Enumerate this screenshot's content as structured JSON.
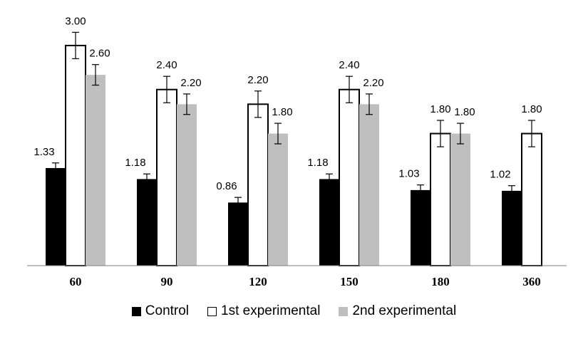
{
  "chart_data": {
    "type": "bar",
    "categories": [
      "60",
      "90",
      "120",
      "150",
      "180",
      "360"
    ],
    "series": [
      {
        "name": "Control",
        "color": "#000000",
        "fill": "#000000",
        "values": [
          1.33,
          1.18,
          0.86,
          1.18,
          1.03,
          1.02
        ],
        "errors": [
          0.07,
          0.07,
          0.07,
          0.07,
          0.07,
          0.07
        ]
      },
      {
        "name": "1st experimental",
        "color": "#000000",
        "fill": "#ffffff",
        "values": [
          3.0,
          2.4,
          2.2,
          2.4,
          1.8,
          1.8
        ],
        "errors": [
          0.18,
          0.18,
          0.18,
          0.18,
          0.18,
          0.18
        ]
      },
      {
        "name": "2nd experimental",
        "color": "#bfbfbf",
        "fill": "#bfbfbf",
        "values": [
          2.6,
          2.2,
          1.8,
          2.2,
          1.8,
          null
        ],
        "errors": [
          0.14,
          0.14,
          0.14,
          0.14,
          0.14,
          null
        ]
      }
    ],
    "data_labels": [
      [
        "1.33",
        "1.18",
        "0.86",
        "1.18",
        "1.03",
        "1.02"
      ],
      [
        "3.00",
        "2.40",
        "2.20",
        "2.40",
        "1.80",
        "1.80"
      ],
      [
        "2.60",
        "2.20",
        "1.80",
        "2.20",
        "1.80",
        ""
      ]
    ],
    "ylim": [
      0,
      3.3
    ],
    "grid": false,
    "legend_position": "bottom"
  }
}
